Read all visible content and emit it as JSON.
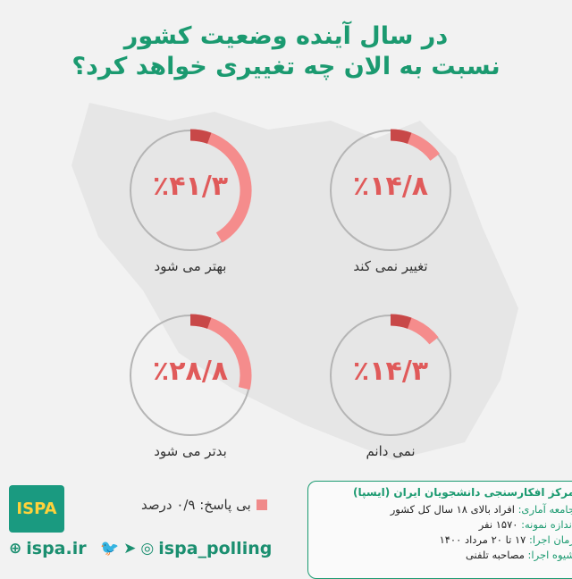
{
  "title": {
    "line1": "در سال آینده وضعیت کشور",
    "line2": "نسبت به الان چه تغییری خواهد کرد؟"
  },
  "colors": {
    "title": "#1b9a70",
    "arc_start": "#c84848",
    "arc_end": "#f58c8c",
    "ring": "#b5b5b5",
    "value": "#e05a5a"
  },
  "chart_data": {
    "type": "pie",
    "title": "در سال آینده وضعیت کشور نسبت به الان چه تغییری خواهد کرد؟",
    "categories": [
      "بهتر می شود",
      "تغییر نمی کند",
      "بدتر می شود",
      "نمی دانم"
    ],
    "values": [
      41.3,
      14.8,
      28.8,
      14.3
    ],
    "value_labels": [
      "٪۴۱/۳",
      "٪۱۴/۸",
      "٪۲۸/۸",
      "٪۱۴/۳"
    ],
    "unit": "percent"
  },
  "no_answer": "بی پاسخ: ۰/۹ درصد",
  "info": {
    "heading": "مرکز افکارسنجی دانشجویان ایران (ایسپا)",
    "rows": [
      {
        "k": "جامعه آماری:",
        "v": " افراد بالای ۱۸ سال کل کشور"
      },
      {
        "k": "اندازه نمونه:",
        "v": " ۱۵۷۰ نفر"
      },
      {
        "k": "زمان اجرا:",
        "v": " ۱۷ تا ۲۰ مرداد ۱۴۰۰"
      },
      {
        "k": "شیوه اجرا:",
        "v": " مصاحبه تلفنی"
      }
    ]
  },
  "logo": {
    "text": "ISPA"
  },
  "social": {
    "website": "ispa.ir",
    "handle": "ispa_polling"
  },
  "icons": [
    "globe-icon",
    "twitter-icon",
    "telegram-icon",
    "instagram-icon"
  ]
}
